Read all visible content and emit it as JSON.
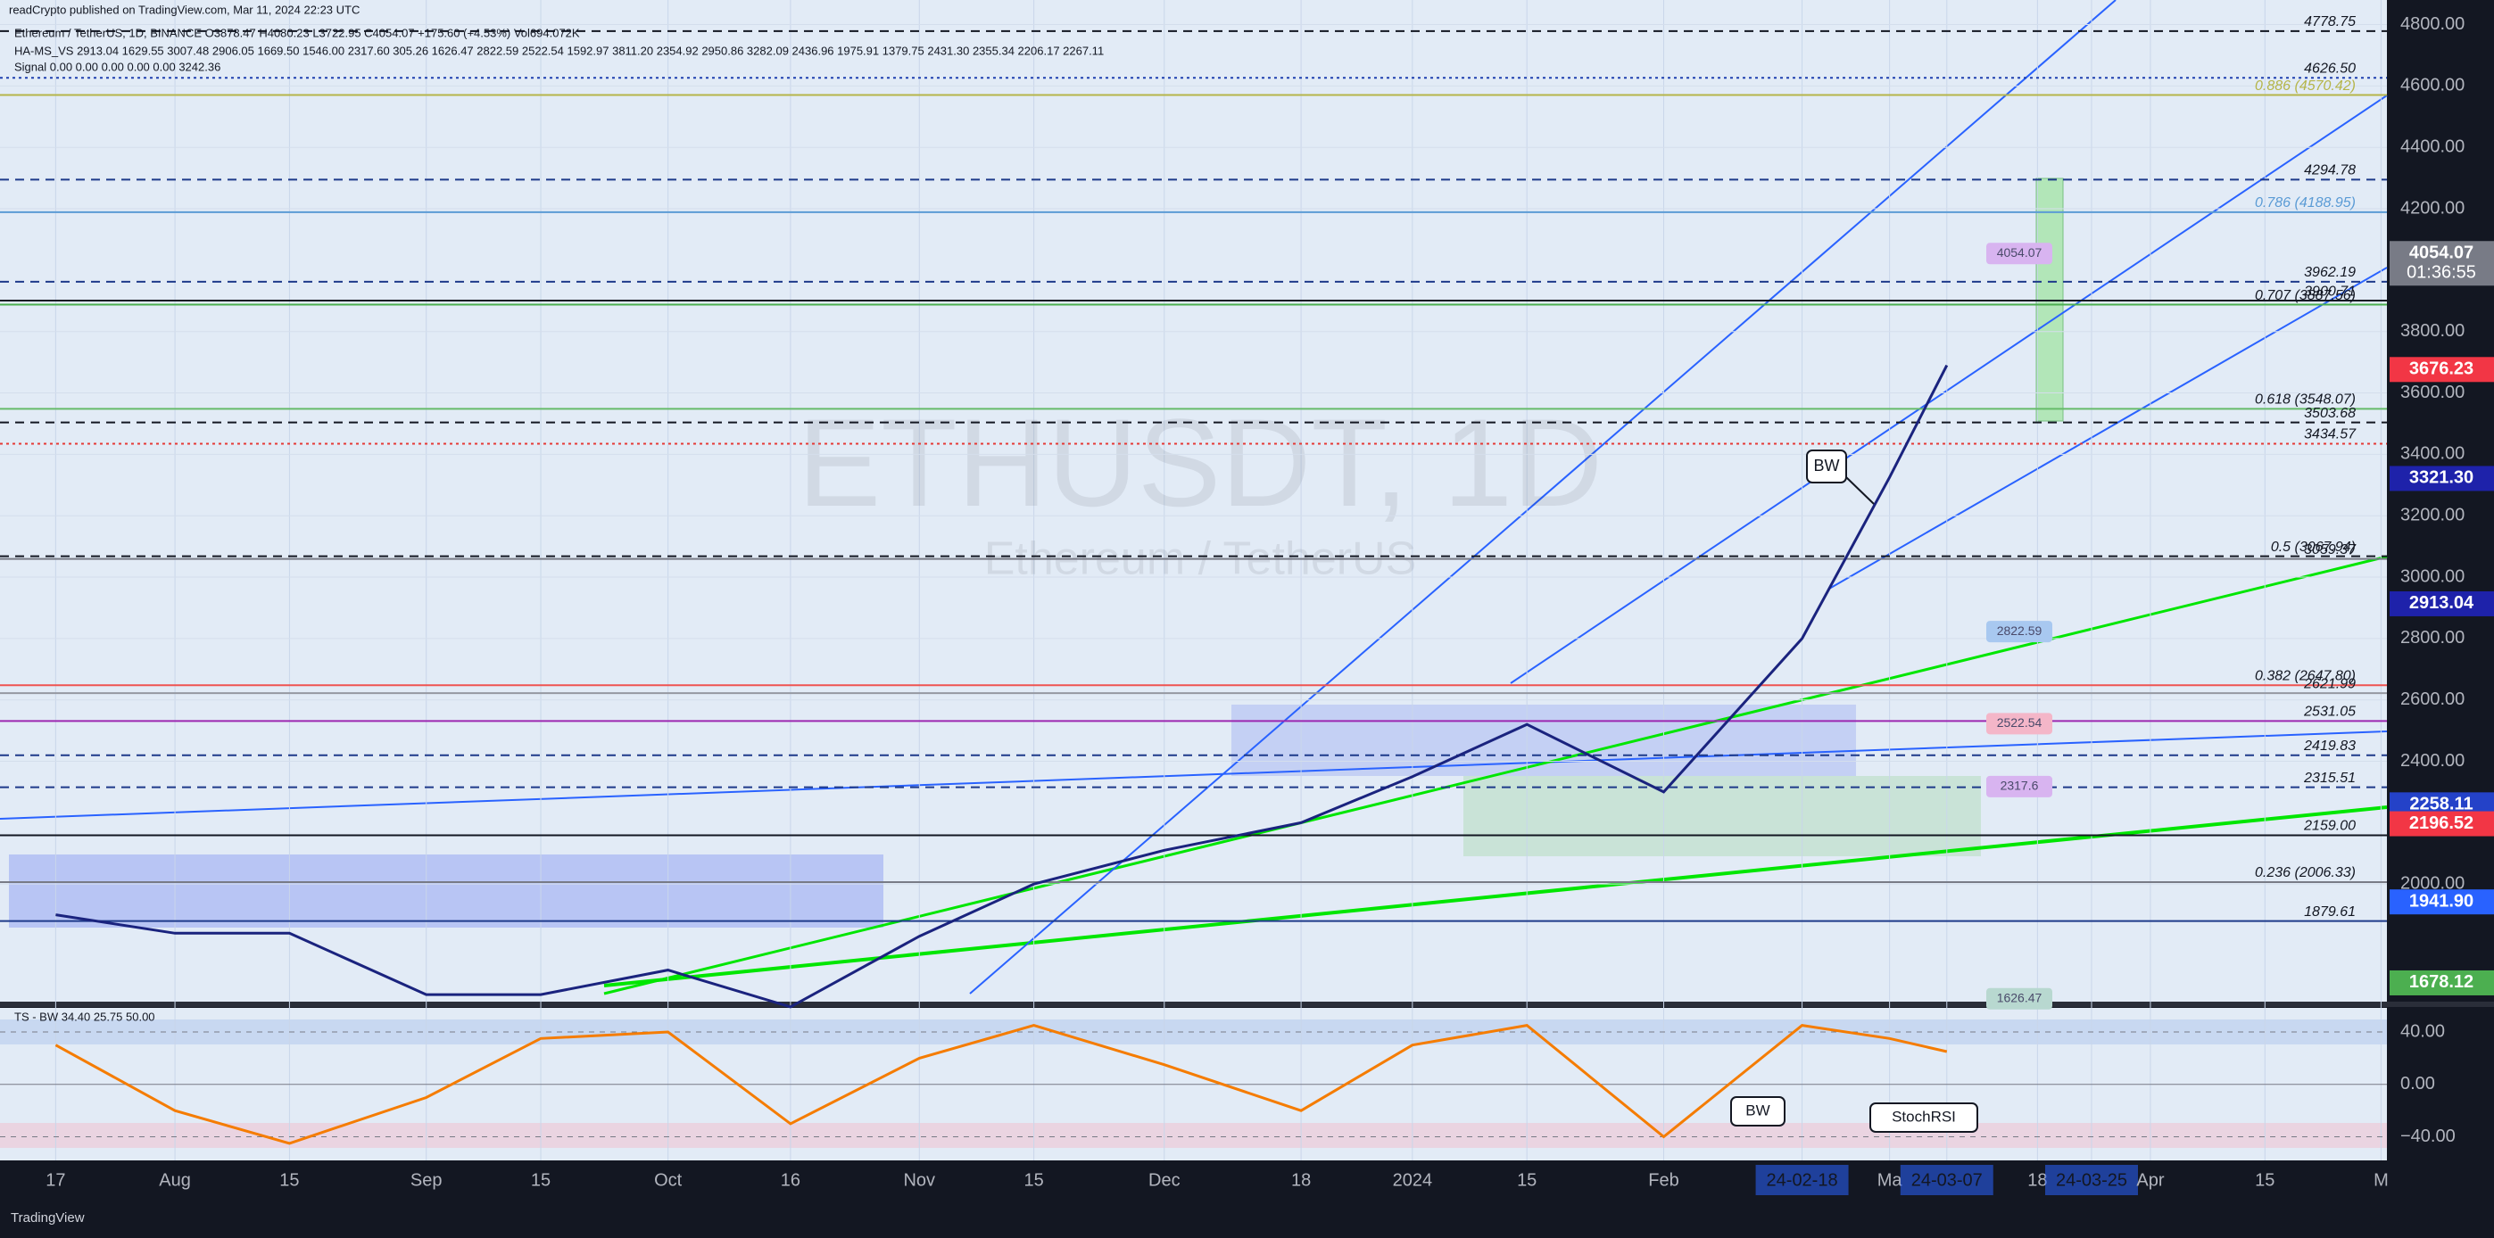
{
  "header": {
    "published": "readCrypto published on TradingView.com, Mar 11, 2024 22:23 UTC",
    "footer": "TradingView"
  },
  "chart_data": [
    {
      "type": "line",
      "title": "Ethereum / TetherUS, 1D, BINANCE O3878.47 H4080.23 L3722.95 C4054.07 +175.60 (+4.53%) Vol694.072K",
      "indicator_lines": [
        "HA-MS_VS 2913.04 1629.55 3007.48 2906.05 1669.50 1546.00 2317.60 305.26 1626.47 2822.59 2522.54 1592.97 3811.20 2354.92 2950.86 3282.09 2436.96 1975.91 1379.75 2431.30 2355.34 2206.17 2267.11",
        "Signal 0.00 0.00 0.00 0.00 0.00 3242.36"
      ],
      "watermark": "ETHUSDT, 1D",
      "watermark_subtitle": "Ethereum / TetherUS",
      "categories": [
        "17",
        "Aug",
        "15",
        "Sep",
        "15",
        "Oct",
        "16",
        "Nov",
        "15",
        "Dec",
        "18",
        "2024",
        "15",
        "Feb",
        "24-02-18",
        "Ma",
        "24-03-07",
        "18",
        "24-03-25",
        "Apr",
        "15",
        "M"
      ],
      "series": [
        {
          "name": "ETHUSDT",
          "color": "#1a237e",
          "values": [
            1900,
            1840,
            1840,
            1640,
            1640,
            1720,
            1600,
            1830,
            2000,
            2110,
            2200,
            2350,
            2520,
            2300,
            2800,
            3325,
            3690,
            null,
            null,
            null,
            null,
            null
          ]
        }
      ],
      "ylim": [
        1617,
        4880
      ],
      "yticks": [
        {
          "value": 4800,
          "label": "4800.00"
        },
        {
          "value": 4600,
          "label": "4600.00"
        },
        {
          "value": 4400,
          "label": "4400.00"
        },
        {
          "value": 4200,
          "label": "4200.00"
        },
        {
          "value": 3800,
          "label": "3800.00"
        },
        {
          "value": 3600,
          "label": "3600.00"
        },
        {
          "value": 3400,
          "label": "3400.00"
        },
        {
          "value": 3200,
          "label": "3200.00"
        },
        {
          "value": 3000,
          "label": "3000.00"
        },
        {
          "value": 2800,
          "label": "2800.00"
        },
        {
          "value": 2600,
          "label": "2600.00"
        },
        {
          "value": 2400,
          "label": "2400.00"
        },
        {
          "value": 2000,
          "label": "2000.00"
        }
      ],
      "levels": [
        {
          "value": 4778.75,
          "label": "4778.75",
          "color": "#131722",
          "dash": "dashed"
        },
        {
          "value": 4626.5,
          "label": "4626.50",
          "color": "#1e40af",
          "dash": "dotted"
        },
        {
          "value": 4570.42,
          "label": "0.886 (4570.42)",
          "color": "#b5b54a",
          "dash": "solid"
        },
        {
          "value": 4294.78,
          "label": "4294.78",
          "color": "#1e3a8a",
          "dash": "dashed"
        },
        {
          "value": 4188.95,
          "label": "0.786 (4188.95)",
          "color": "#5b9bd5",
          "dash": "solid"
        },
        {
          "value": 3962.19,
          "label": "3962.19",
          "color": "#1e3a8a",
          "dash": "dashed"
        },
        {
          "value": 3900.71,
          "label": "3900.71",
          "color": "#131722",
          "dash": "solid"
        },
        {
          "value": 3887.56,
          "label": "0.707 (3887.56)",
          "color": "#4caf50",
          "dash": "solid"
        },
        {
          "value": 3548.07,
          "label": "0.618 (3548.07)",
          "color": "#66bb6a",
          "dash": "solid"
        },
        {
          "value": 3503.68,
          "label": "3503.68",
          "color": "#131722",
          "dash": "dashed"
        },
        {
          "value": 3434.57,
          "label": "3434.57",
          "color": "#e53935",
          "dash": "dotted"
        },
        {
          "value": 3067.94,
          "label": "0.5 (3067.94)",
          "color": "#131722",
          "dash": "dashed"
        },
        {
          "value": 3059.37,
          "label": "3059.37",
          "color": "#787b86",
          "dash": "solid"
        },
        {
          "value": 2647.8,
          "label": "0.382 (2647.80)",
          "color": "#ef5350",
          "dash": "solid"
        },
        {
          "value": 2621.99,
          "label": "2621.99",
          "color": "#9598a1",
          "dash": "solid"
        },
        {
          "value": 2531.05,
          "label": "2531.05",
          "color": "#9c27b0",
          "dash": "solid"
        },
        {
          "value": 2419.83,
          "label": "2419.83",
          "color": "#1e3a8a",
          "dash": "dashed"
        },
        {
          "value": 2315.51,
          "label": "2315.51",
          "color": "#1e3a8a",
          "dash": "dashed"
        },
        {
          "value": 2159.0,
          "label": "2159.00",
          "color": "#131722",
          "dash": "solid"
        },
        {
          "value": 2006.33,
          "label": "0.236 (2006.33)",
          "color": "#787b86",
          "dash": "solid"
        },
        {
          "value": 1879.61,
          "label": "1879.61",
          "color": "#1e3a8a",
          "dash": "solid"
        }
      ],
      "badges": [
        {
          "value": 4054.07,
          "label": "4054.07",
          "sub": "01:36:55",
          "color": "#787b86"
        },
        {
          "value": 3676.23,
          "label": "3676.23",
          "color": "#f23645"
        },
        {
          "value": 3321.3,
          "label": "3321.30",
          "color": "#1e22aa"
        },
        {
          "value": 2913.04,
          "label": "2913.04",
          "color": "#1e22aa"
        },
        {
          "value": 2258.11,
          "label": "2258.11",
          "color": "#2442c8"
        },
        {
          "value": 2196.52,
          "label": "2196.52",
          "color": "#f23645"
        },
        {
          "value": 1941.9,
          "label": "1941.90",
          "color": "#2962ff"
        },
        {
          "value": 1678.12,
          "label": "1678.12",
          "color": "#4caf50"
        }
      ],
      "chart_labels": [
        {
          "value": 4054.07,
          "label": "4054.07",
          "color": "#d8b4f0"
        },
        {
          "value": 2822.59,
          "label": "2822.59",
          "color": "#a8c8f0"
        },
        {
          "value": 2522.54,
          "label": "2522.54",
          "color": "#f4b6c8"
        },
        {
          "value": 2317.6,
          "label": "2317.6",
          "color": "#d8b4f0"
        },
        {
          "value": 1626.47,
          "label": "1626.47",
          "color": "#b8d8d0"
        }
      ],
      "annotations": [
        "BW"
      ]
    },
    {
      "type": "line",
      "title": "TS - BW 34.40 25.75 50.00",
      "series": [
        {
          "name": "TS - BW",
          "color": "#f57c00",
          "values": [
            30,
            -20,
            -45,
            -10,
            35,
            40,
            -30,
            20,
            45,
            15,
            -20,
            30,
            45,
            -40,
            45,
            35,
            25,
            null,
            null,
            null,
            null,
            null
          ]
        }
      ],
      "ylim": [
        -58,
        57
      ],
      "yticks": [
        {
          "value": 40,
          "label": "40.00"
        },
        {
          "value": 0,
          "label": "0.00"
        },
        {
          "value": -40,
          "label": "−40.00"
        }
      ],
      "annotations": [
        "BW",
        "StochRSI"
      ]
    }
  ]
}
